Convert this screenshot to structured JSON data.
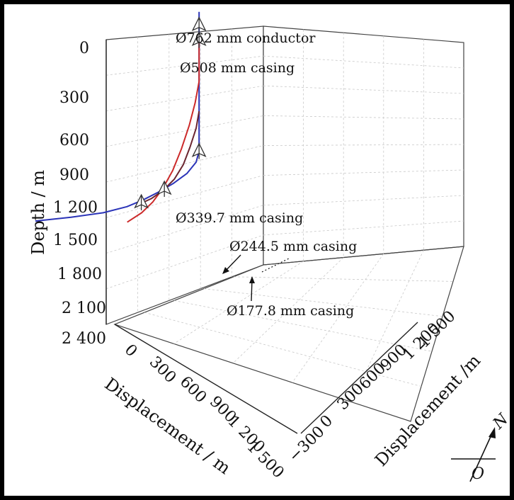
{
  "chart_data": {
    "type": "line",
    "title": "",
    "axes": {
      "depth": {
        "label": "Depth / m",
        "ticks": [
          "0",
          "300",
          "600",
          "900",
          "1 200",
          "1 500",
          "1 800",
          "2 100",
          "2 400"
        ],
        "range": [
          0,
          2400
        ],
        "inverted": true
      },
      "displacement_x": {
        "label": "Displacement / m",
        "ticks": [
          "0",
          "300",
          "600",
          "900",
          "1 200",
          "1 500"
        ],
        "range": [
          0,
          1500
        ]
      },
      "displacement_y": {
        "label": "Displacement /m",
        "ticks": [
          "−300",
          "0",
          "300",
          "600",
          "900",
          "1 200",
          "1 500"
        ],
        "range": [
          -300,
          1500
        ]
      }
    },
    "grid": true,
    "series": [
      {
        "color": "#2b34b8",
        "points": [
          [
            0,
            0,
            0
          ],
          [
            0,
            0,
            300
          ],
          [
            0,
            0,
            600
          ],
          [
            0,
            0,
            900
          ],
          [
            0,
            0,
            1200
          ],
          [
            0,
            0,
            1400
          ],
          [
            30,
            0,
            1500
          ],
          [
            110,
            -10,
            1580
          ],
          [
            240,
            -20,
            1630
          ],
          [
            380,
            -30,
            1660
          ],
          [
            520,
            -40,
            1680
          ],
          [
            660,
            -60,
            1690
          ],
          [
            820,
            -130,
            1680
          ],
          [
            1000,
            -260,
            1640
          ],
          [
            1180,
            -420,
            1590
          ]
        ]
      },
      {
        "color": "#cc2a2a",
        "points": [
          [
            0,
            0,
            300
          ],
          [
            0,
            0,
            700
          ],
          [
            40,
            0,
            900
          ],
          [
            110,
            10,
            1100
          ],
          [
            200,
            20,
            1300
          ],
          [
            300,
            30,
            1480
          ],
          [
            400,
            30,
            1620
          ],
          [
            490,
            20,
            1720
          ],
          [
            580,
            0,
            1790
          ],
          [
            680,
            -40,
            1840
          ]
        ]
      },
      {
        "color": "#6b2630",
        "points": [
          [
            0,
            0,
            1000
          ],
          [
            30,
            0,
            1160
          ],
          [
            90,
            0,
            1320
          ],
          [
            170,
            10,
            1470
          ],
          [
            260,
            10,
            1580
          ],
          [
            360,
            0,
            1650
          ],
          [
            470,
            -10,
            1690
          ],
          [
            560,
            -20,
            1700
          ]
        ]
      }
    ],
    "annotations": [
      {
        "text": "Ø762 mm conductor",
        "point": [
          0,
          0,
          0
        ]
      },
      {
        "text": "Ø508 mm casing",
        "point": [
          0,
          0,
          150
        ]
      },
      {
        "text": "Ø339.7 mm casing",
        "point": [
          0,
          0,
          1410
        ]
      },
      {
        "text": "Ø244.5 mm casing",
        "point": [
          350,
          0,
          1650
        ]
      },
      {
        "text": "Ø177.8 mm casing",
        "point": [
          560,
          -20,
          1700
        ]
      }
    ],
    "compass": {
      "north": "N",
      "origin": "O"
    }
  }
}
